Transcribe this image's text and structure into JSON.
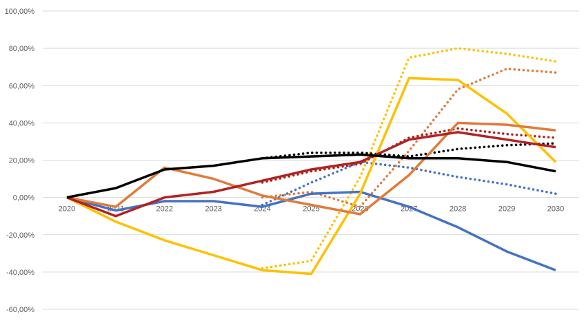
{
  "chart_data": {
    "type": "line",
    "title": "",
    "xlabel": "",
    "ylabel": "",
    "categories": [
      "2020",
      "2021",
      "2022",
      "2023",
      "2024",
      "2025",
      "2026",
      "2027",
      "2028",
      "2029",
      "2030"
    ],
    "ylim": [
      -60,
      100
    ],
    "yticks": [
      -60,
      -40,
      -20,
      0,
      20,
      40,
      60,
      80,
      100
    ],
    "ytick_labels": [
      "-60,00%",
      "-40,00%",
      "-20,00%",
      "0,00%",
      "20,00%",
      "40,00%",
      "60,00%",
      "80,00%",
      "100,00%"
    ],
    "grid": true,
    "legend": "none",
    "series": [
      {
        "color": "#4472c4",
        "dash": "solid",
        "values": [
          0,
          -7,
          -2,
          -2,
          -5,
          2,
          3,
          -5,
          -16,
          -29,
          -39
        ]
      },
      {
        "color": "#4472c4",
        "dash": "dotted",
        "values": [
          null,
          null,
          null,
          null,
          -4,
          8,
          19,
          16,
          11,
          7,
          2
        ]
      },
      {
        "color": "#ffc000",
        "dash": "solid",
        "values": [
          0,
          -13,
          -23,
          -31,
          -39,
          -41,
          2,
          64,
          63,
          45,
          19
        ]
      },
      {
        "color": "#ffc000",
        "dash": "dotted",
        "values": [
          null,
          null,
          null,
          null,
          -38,
          -34,
          11,
          75,
          80,
          77,
          73
        ]
      },
      {
        "color": "#e07b39",
        "dash": "solid",
        "values": [
          0,
          -5,
          16,
          10,
          1,
          -4,
          -9,
          12,
          40,
          39,
          36
        ]
      },
      {
        "color": "#e07b39",
        "dash": "dotted",
        "values": [
          null,
          null,
          null,
          null,
          0,
          3,
          -5,
          25,
          58,
          69,
          67
        ]
      },
      {
        "color": "#b22222",
        "dash": "solid",
        "values": [
          0,
          -10,
          0,
          3,
          9,
          15,
          19,
          31,
          35,
          31,
          27
        ]
      },
      {
        "color": "#b22222",
        "dash": "dotted",
        "values": [
          null,
          null,
          null,
          null,
          8,
          14,
          18,
          32,
          37,
          34,
          32
        ]
      },
      {
        "color": "#000000",
        "dash": "solid",
        "values": [
          0,
          5,
          15,
          17,
          21,
          22,
          23,
          21,
          21,
          19,
          14
        ]
      },
      {
        "color": "#000000",
        "dash": "dotted",
        "values": [
          null,
          null,
          null,
          null,
          21,
          24,
          24,
          22,
          26,
          28,
          29
        ]
      }
    ]
  }
}
